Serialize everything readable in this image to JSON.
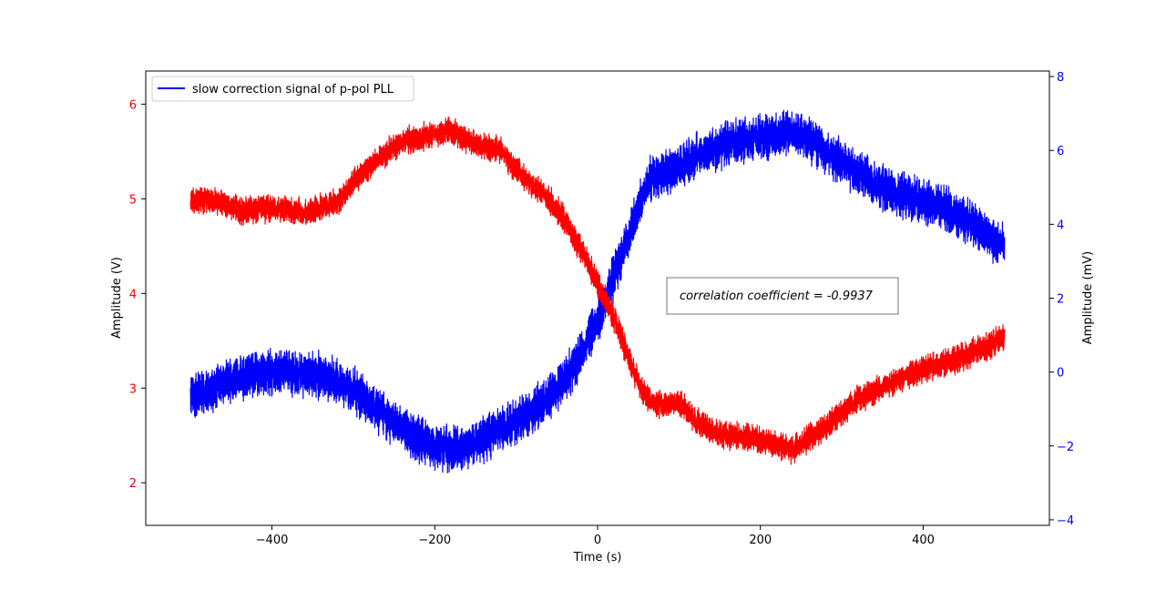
{
  "chart_data": {
    "type": "line",
    "title": "",
    "xlabel": "Time (s)",
    "ylabel_left": "Amplitude (V)",
    "ylabel_right": "Amplitude (mV)",
    "xlim": [
      -555,
      555
    ],
    "ylim_left": [
      1.55,
      6.35
    ],
    "ylim_right": [
      -4.15,
      8.15
    ],
    "x_ticks": [
      -400,
      -200,
      0,
      200,
      400
    ],
    "x_tick_labels": [
      "−400",
      "−200",
      "0",
      "200",
      "400"
    ],
    "y_left_ticks": [
      2,
      3,
      4,
      5,
      6
    ],
    "y_left_tick_labels": [
      "2",
      "3",
      "4",
      "5",
      "6"
    ],
    "y_right_ticks": [
      -4,
      -2,
      0,
      2,
      4,
      6,
      8
    ],
    "y_right_tick_labels": [
      "−4",
      "−2",
      "0",
      "2",
      "4",
      "6",
      "8"
    ],
    "grid": false,
    "legend": {
      "location": "upper-left",
      "entries": [
        "slow correction signal of p-pol PLL"
      ]
    },
    "annotation": "correlation coefficient = -0.9937",
    "series": [
      {
        "axis": "left",
        "color": "#ff0000",
        "noise_amplitude": 0.13,
        "x": [
          -500,
          -470,
          -440,
          -400,
          -360,
          -320,
          -280,
          -240,
          -200,
          -180,
          -160,
          -140,
          -120,
          -100,
          -80,
          -60,
          -40,
          -20,
          0,
          20,
          40,
          60,
          80,
          100,
          120,
          140,
          160,
          180,
          200,
          240,
          280,
          320,
          360,
          400,
          440,
          480,
          500
        ],
        "y": [
          4.97,
          5.0,
          4.88,
          4.9,
          4.85,
          4.98,
          5.35,
          5.6,
          5.68,
          5.72,
          5.62,
          5.55,
          5.52,
          5.3,
          5.15,
          5.0,
          4.78,
          4.45,
          4.12,
          3.75,
          3.28,
          2.88,
          2.82,
          2.85,
          2.65,
          2.55,
          2.5,
          2.48,
          2.45,
          2.35,
          2.6,
          2.88,
          3.05,
          3.2,
          3.3,
          3.45,
          3.55
        ]
      },
      {
        "axis": "right",
        "name": "slow correction signal of p-pol PLL",
        "color": "#0000ff",
        "noise_amplitude": 0.55,
        "x": [
          -500,
          -460,
          -420,
          -380,
          -340,
          -300,
          -260,
          -220,
          -200,
          -180,
          -160,
          -140,
          -120,
          -100,
          -80,
          -60,
          -40,
          -20,
          0,
          20,
          40,
          60,
          80,
          100,
          120,
          140,
          160,
          180,
          200,
          220,
          240,
          260,
          280,
          320,
          360,
          400,
          440,
          480,
          500
        ],
        "y": [
          -0.7,
          -0.3,
          -0.05,
          0.0,
          -0.1,
          -0.5,
          -1.2,
          -1.8,
          -2.0,
          -2.1,
          -2.0,
          -1.8,
          -1.6,
          -1.35,
          -1.05,
          -0.7,
          -0.2,
          0.5,
          1.4,
          2.6,
          3.8,
          5.1,
          5.4,
          5.5,
          5.85,
          6.05,
          6.2,
          6.25,
          6.35,
          6.4,
          6.5,
          6.3,
          6.0,
          5.4,
          4.9,
          4.6,
          4.3,
          3.7,
          3.4
        ]
      }
    ]
  }
}
